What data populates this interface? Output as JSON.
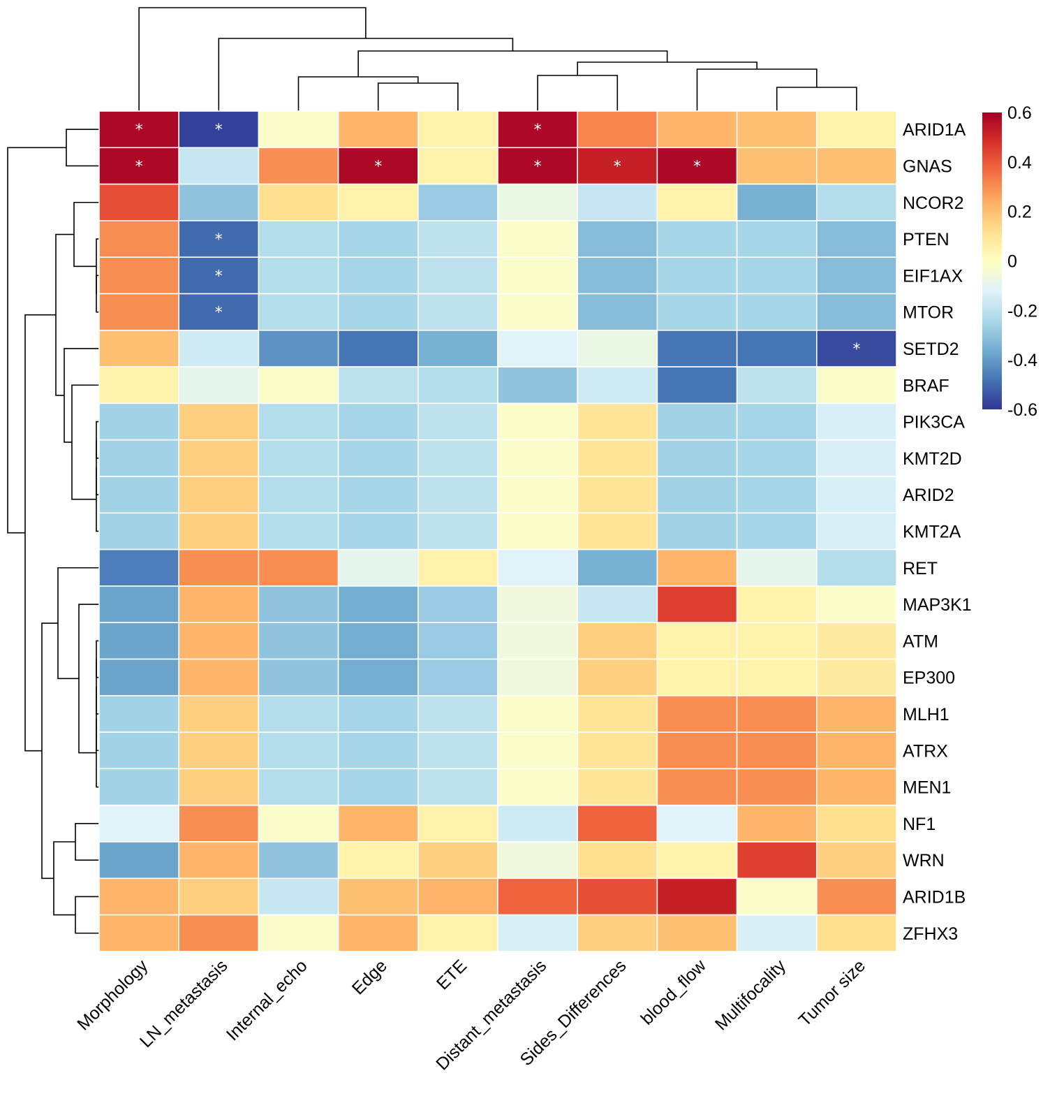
{
  "chart_data": {
    "type": "heatmap",
    "title": "",
    "columns": [
      "Morphology",
      "LN_metastasis",
      "Internal_echo",
      "Edge",
      "ETE",
      "Distant_metastasis",
      "Sides_Differences",
      "blood_flow",
      "Multifocality",
      "Tumor size"
    ],
    "rows": [
      "ARID1A",
      "GNAS",
      "NCOR2",
      "PTEN",
      "EIF1AX",
      "MTOR",
      "SETD2",
      "BRAF",
      "PIK3CA",
      "KMT2D",
      "ARID2",
      "KMT2A",
      "RET",
      "MAP3K1",
      "ATM",
      "EP300",
      "MLH1",
      "ATRX",
      "MEN1",
      "NF1",
      "WRN",
      "ARID1B",
      "ZFHX3"
    ],
    "values": [
      [
        0.58,
        -0.58,
        -0.02,
        0.22,
        0.05,
        0.58,
        0.32,
        0.22,
        0.2,
        0.05
      ],
      [
        0.58,
        -0.18,
        0.3,
        0.58,
        0.05,
        0.58,
        0.52,
        0.58,
        0.2,
        0.2
      ],
      [
        0.42,
        -0.3,
        0.12,
        0.05,
        -0.28,
        -0.08,
        -0.18,
        0.05,
        -0.35,
        -0.22
      ],
      [
        0.3,
        -0.5,
        -0.22,
        -0.25,
        -0.2,
        -0.02,
        -0.32,
        -0.25,
        -0.25,
        -0.32
      ],
      [
        0.3,
        -0.5,
        -0.22,
        -0.25,
        -0.2,
        -0.02,
        -0.32,
        -0.25,
        -0.25,
        -0.32
      ],
      [
        0.3,
        -0.5,
        -0.22,
        -0.25,
        -0.2,
        -0.02,
        -0.32,
        -0.25,
        -0.25,
        -0.32
      ],
      [
        0.2,
        -0.16,
        -0.42,
        -0.48,
        -0.35,
        -0.12,
        -0.08,
        -0.48,
        -0.48,
        -0.56
      ],
      [
        0.05,
        -0.1,
        -0.02,
        -0.2,
        -0.22,
        -0.3,
        -0.16,
        -0.48,
        -0.2,
        -0.02
      ],
      [
        -0.26,
        0.16,
        -0.22,
        -0.25,
        -0.2,
        -0.02,
        0.1,
        -0.26,
        -0.25,
        -0.14
      ],
      [
        -0.26,
        0.16,
        -0.22,
        -0.25,
        -0.2,
        -0.02,
        0.1,
        -0.26,
        -0.25,
        -0.14
      ],
      [
        -0.26,
        0.16,
        -0.22,
        -0.25,
        -0.2,
        -0.02,
        0.1,
        -0.26,
        -0.25,
        -0.14
      ],
      [
        -0.26,
        0.16,
        -0.22,
        -0.25,
        -0.2,
        -0.02,
        0.1,
        -0.26,
        -0.25,
        -0.14
      ],
      [
        -0.46,
        0.3,
        0.3,
        -0.1,
        0.05,
        -0.12,
        -0.35,
        0.22,
        -0.1,
        -0.22
      ],
      [
        -0.38,
        0.22,
        -0.3,
        -0.36,
        -0.28,
        -0.06,
        -0.18,
        0.45,
        0.05,
        -0.02
      ],
      [
        -0.38,
        0.22,
        -0.3,
        -0.36,
        -0.28,
        -0.06,
        0.16,
        0.05,
        0.05,
        0.08
      ],
      [
        -0.38,
        0.22,
        -0.3,
        -0.36,
        -0.28,
        -0.06,
        0.16,
        0.05,
        0.05,
        0.08
      ],
      [
        -0.26,
        0.16,
        -0.22,
        -0.25,
        -0.2,
        -0.02,
        0.1,
        0.3,
        0.3,
        0.22
      ],
      [
        -0.26,
        0.16,
        -0.22,
        -0.25,
        -0.2,
        -0.02,
        0.1,
        0.3,
        0.3,
        0.22
      ],
      [
        -0.26,
        0.16,
        -0.22,
        -0.25,
        -0.2,
        -0.02,
        0.1,
        0.3,
        0.3,
        0.22
      ],
      [
        -0.12,
        0.3,
        -0.02,
        0.22,
        0.05,
        -0.16,
        0.38,
        -0.12,
        0.22,
        0.12
      ],
      [
        -0.38,
        0.22,
        -0.3,
        0.05,
        0.16,
        -0.06,
        0.12,
        0.05,
        0.45,
        0.16
      ],
      [
        0.22,
        0.16,
        -0.18,
        0.2,
        0.22,
        0.38,
        0.42,
        0.52,
        -0.02,
        0.3
      ],
      [
        0.22,
        0.3,
        -0.02,
        0.22,
        0.05,
        -0.14,
        0.16,
        0.2,
        -0.14,
        0.12
      ]
    ],
    "significant": [
      [
        0,
        0
      ],
      [
        0,
        1
      ],
      [
        0,
        5
      ],
      [
        1,
        0
      ],
      [
        1,
        3
      ],
      [
        1,
        5
      ],
      [
        1,
        6
      ],
      [
        1,
        7
      ],
      [
        3,
        1
      ],
      [
        4,
        1
      ],
      [
        5,
        1
      ],
      [
        6,
        9
      ]
    ],
    "significance_marker": "*",
    "legend": {
      "position": "top-right",
      "range": [
        -0.6,
        0.6
      ],
      "ticks": [
        -0.6,
        -0.4,
        -0.2,
        0,
        0.2,
        0.4,
        0.6
      ],
      "tick_labels": [
        "-0.6",
        "-0.4",
        "-0.2",
        "0",
        "0.2",
        "0.4",
        "0.6"
      ],
      "colors": [
        "#313695",
        "#4575b4",
        "#74add1",
        "#abd9e9",
        "#e0f3f8",
        "#ffffbf",
        "#fee090",
        "#fdae61",
        "#f46d43",
        "#d73027",
        "#a50026"
      ]
    },
    "column_dendrogram": "top",
    "row_dendrogram": "left"
  }
}
